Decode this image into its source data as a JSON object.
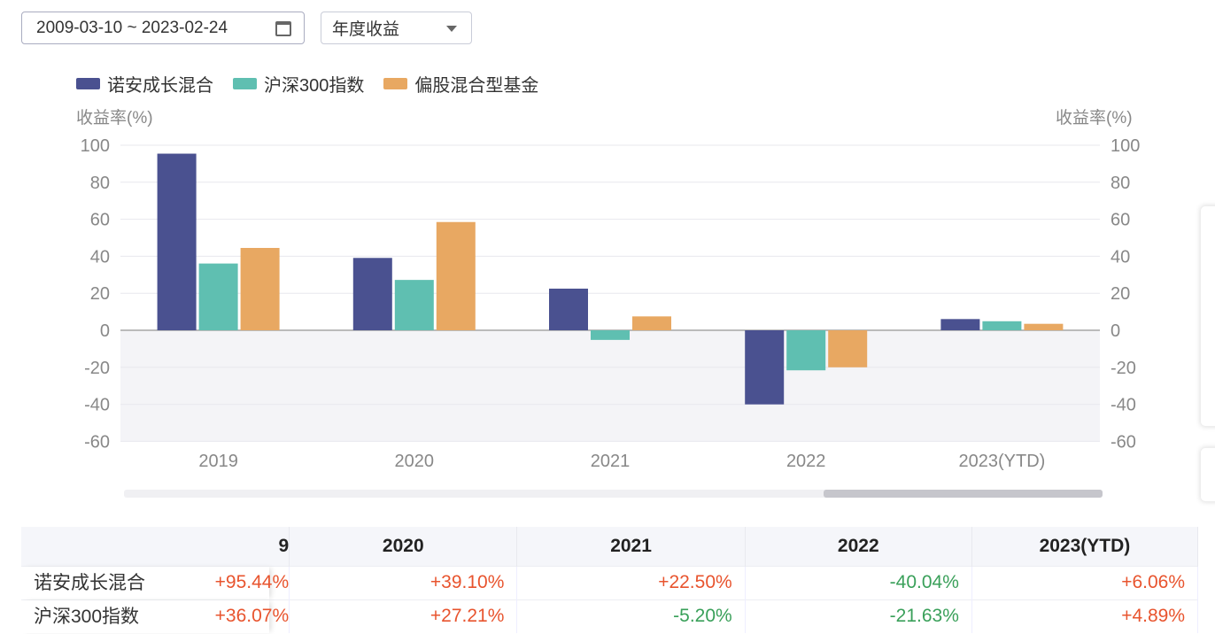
{
  "date_range": {
    "value": "2009-03-10 ~ 2023-02-24",
    "icon": "calendar-icon"
  },
  "period_select": {
    "value": "年度收益"
  },
  "chart_data": {
    "type": "bar",
    "categories": [
      "2019",
      "2020",
      "2021",
      "2022",
      "2023(YTD)"
    ],
    "series": [
      {
        "name": "诺安成长混合",
        "color": "#4a5190",
        "values": [
          95.44,
          39.1,
          22.5,
          -40.04,
          6.06
        ]
      },
      {
        "name": "沪深300指数",
        "color": "#5fbfb1",
        "values": [
          36.07,
          27.21,
          -5.2,
          -21.63,
          4.89
        ]
      },
      {
        "name": "偏股混合型基金",
        "color": "#e8a862",
        "values": [
          44.5,
          58.5,
          7.5,
          -20,
          3.5
        ]
      }
    ],
    "ylabel_left": "收益率(%)",
    "ylabel_right": "收益率(%)",
    "ylim": [
      -60,
      100
    ],
    "yticks": [
      100,
      80,
      60,
      40,
      20,
      0,
      -20,
      -40,
      -60
    ],
    "grid": true,
    "legend": "top-left"
  },
  "table": {
    "headers": [
      "",
      "9",
      "2020",
      "2021",
      "2022",
      "2023(YTD)"
    ],
    "rows": [
      {
        "name": "诺安成长混合",
        "values": [
          "+95.44%",
          "+39.10%",
          "+22.50%",
          "-40.04%",
          "+6.06%"
        ]
      },
      {
        "name": "沪深300指数",
        "values": [
          "+36.07%",
          "+27.21%",
          "-5.20%",
          "-21.63%",
          "+4.89%"
        ]
      }
    ]
  }
}
